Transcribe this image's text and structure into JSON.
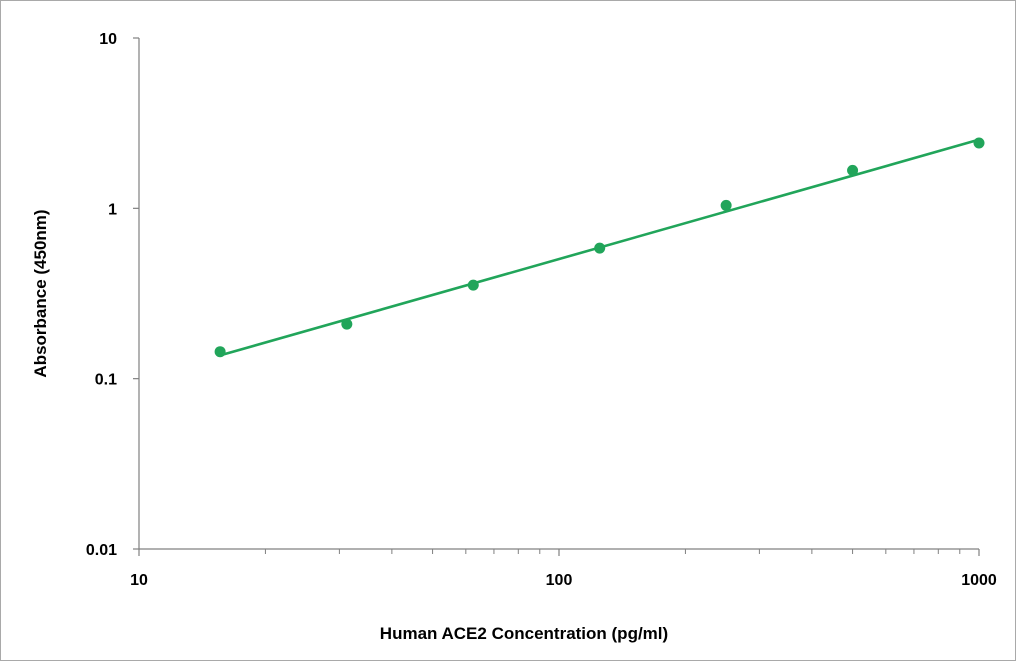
{
  "chart_data": {
    "type": "scatter",
    "title": "",
    "xlabel": "Human ACE2 Concentration (pg/ml)",
    "ylabel": "Absorbance (450nm)",
    "x_scale": "log",
    "y_scale": "log",
    "xlim": [
      10,
      1000
    ],
    "ylim": [
      0.01,
      10
    ],
    "x_tick_labels": [
      "10",
      "100",
      "1000"
    ],
    "y_tick_labels": [
      "10",
      "1",
      "0.1",
      "0.01"
    ],
    "grid": false,
    "legend": "none",
    "colors": {
      "series": "#21a55a",
      "axis": "#808080"
    },
    "series": [
      {
        "points": [
          {
            "x": 15.6,
            "y": 0.144
          },
          {
            "x": 31.25,
            "y": 0.209
          },
          {
            "x": 62.5,
            "y": 0.354
          },
          {
            "x": 125,
            "y": 0.584
          },
          {
            "x": 250,
            "y": 1.04
          },
          {
            "x": 500,
            "y": 1.67
          },
          {
            "x": 1000,
            "y": 2.42
          }
        ],
        "trendline": {
          "type": "power",
          "from": {
            "x": 15.6,
            "y": 0.137
          },
          "to": {
            "x": 1000,
            "y": 2.53
          }
        }
      }
    ]
  }
}
